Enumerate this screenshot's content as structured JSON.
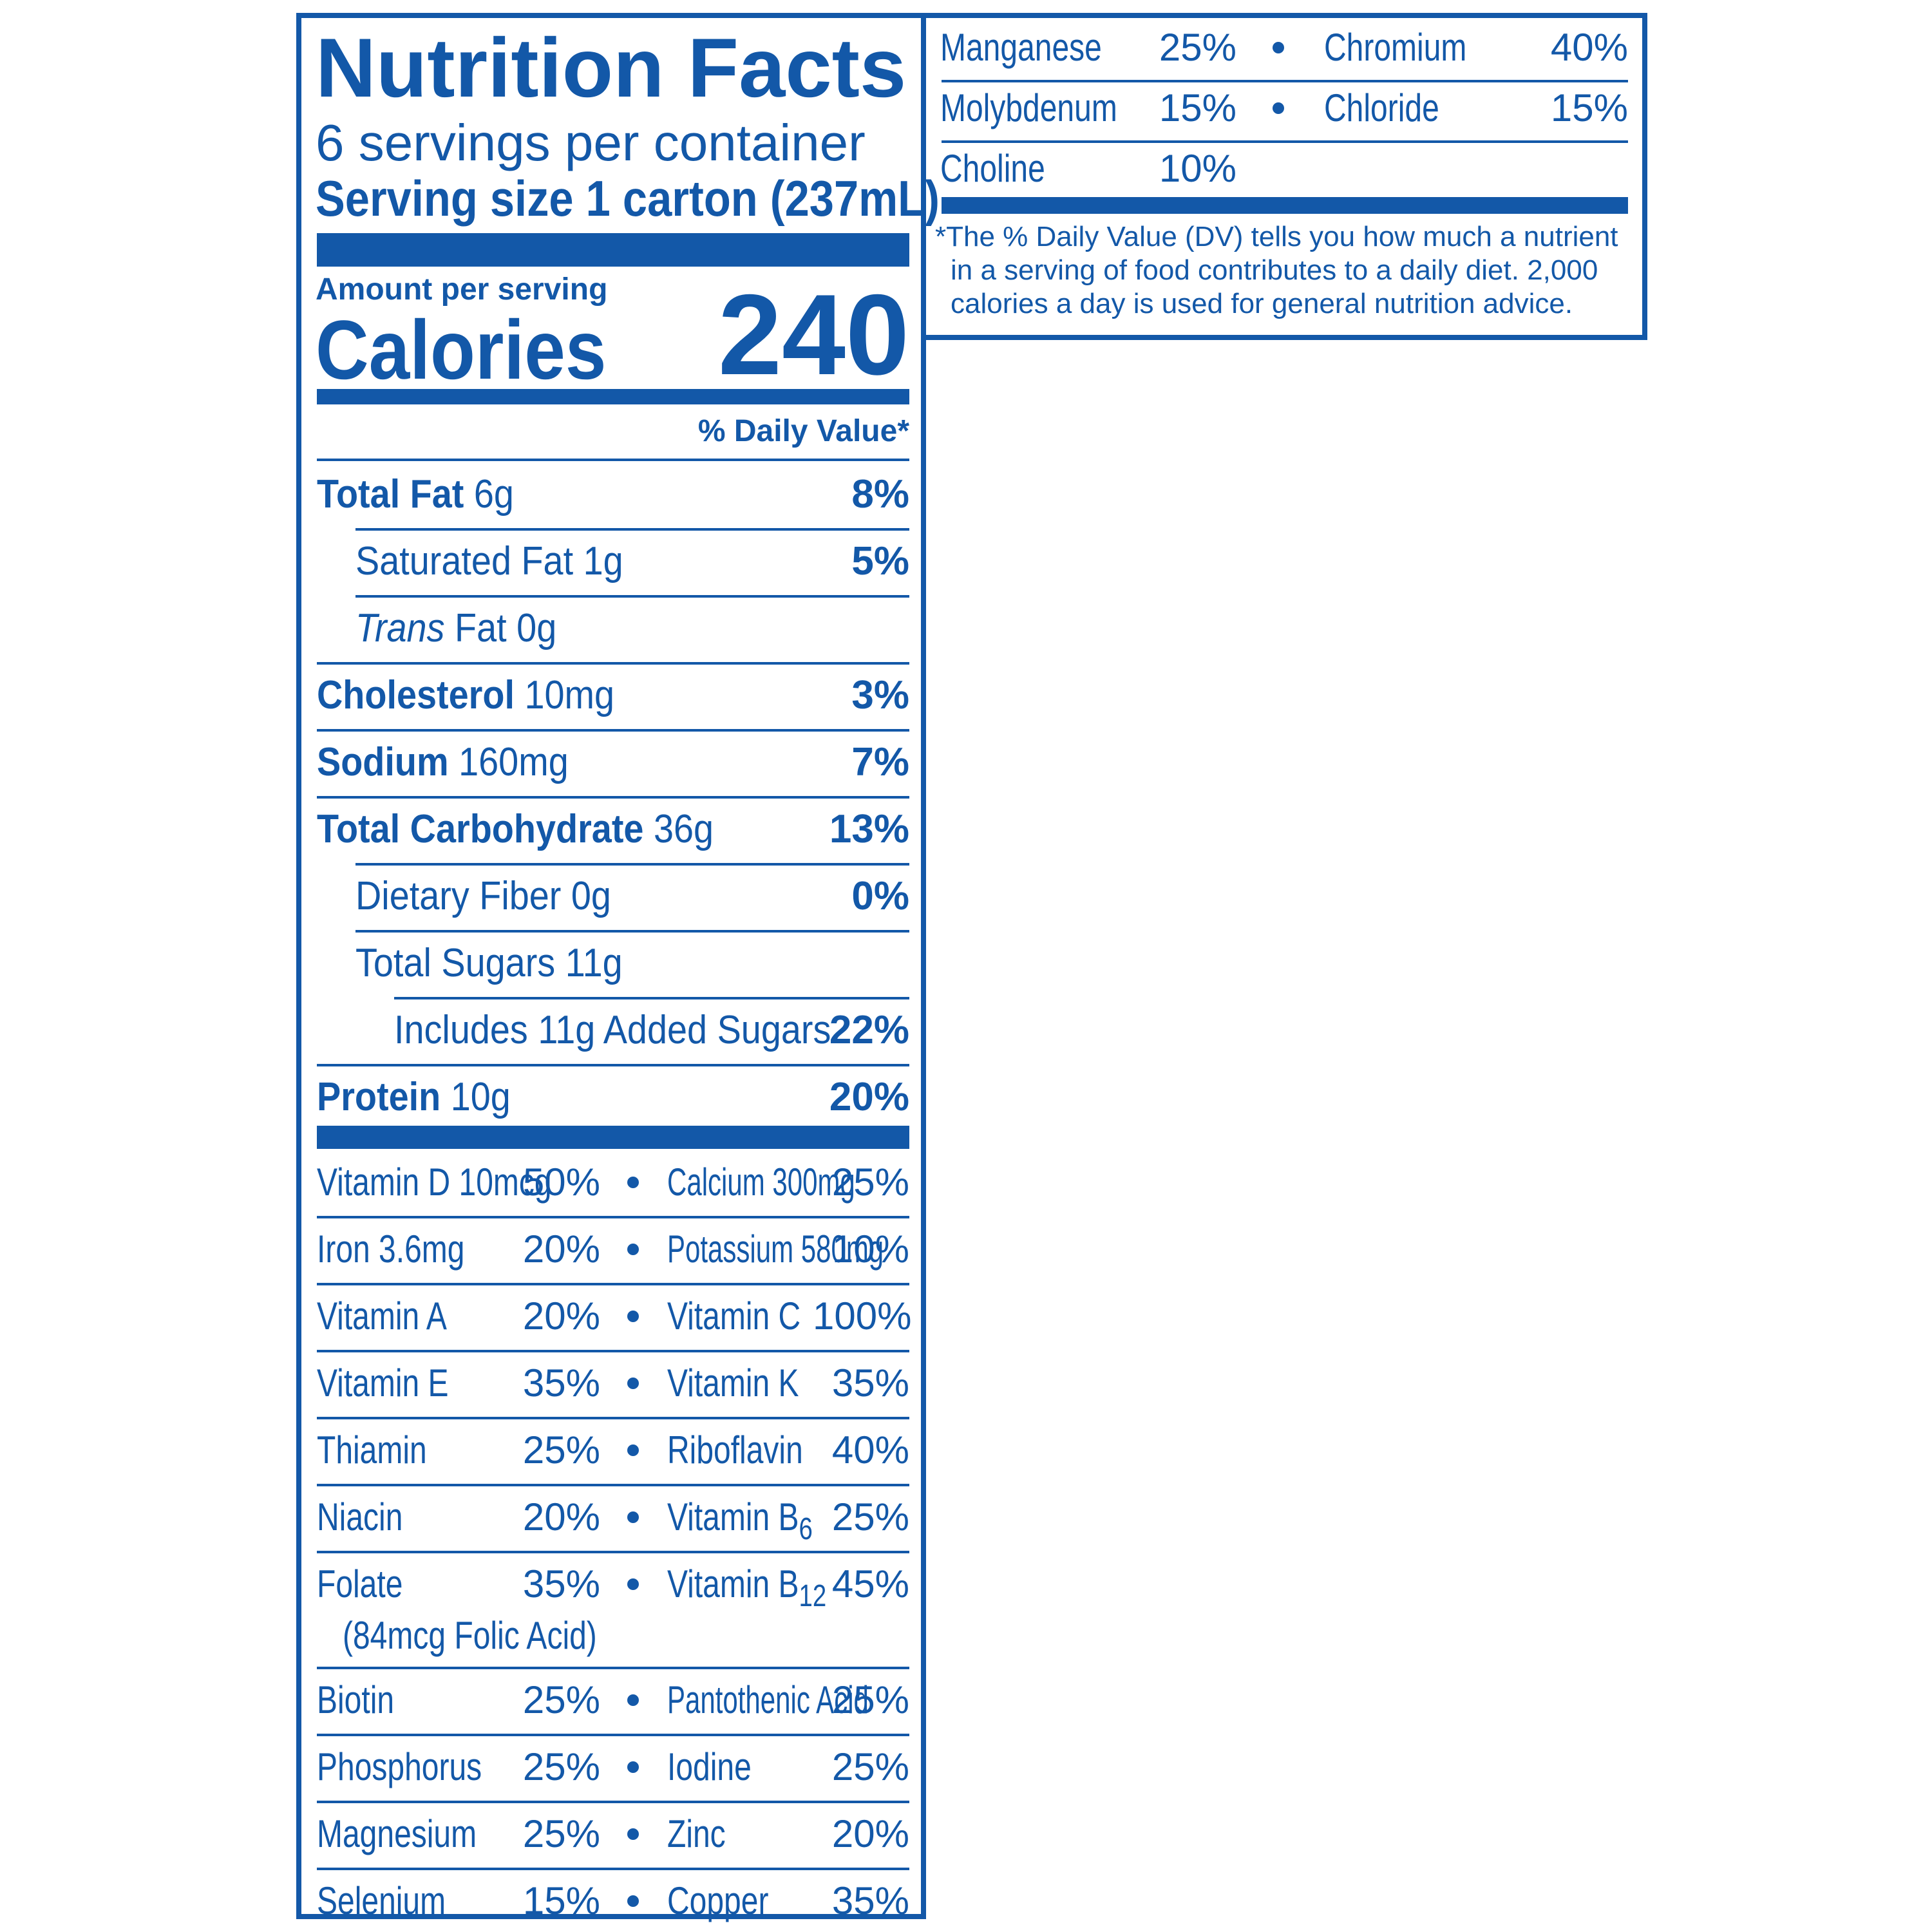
{
  "header": {
    "title": "Nutrition Facts",
    "servings_per_container": "6 servings per container",
    "serving_size_label": "Serving size",
    "serving_size_value": "1 carton (237mL)"
  },
  "calories": {
    "amount_label": "Amount per serving",
    "label": "Calories",
    "value": "240"
  },
  "dv_header": "% Daily Value*",
  "nutrients": [
    {
      "name": "Total Fat",
      "amount": "6g",
      "dv": "8%"
    },
    {
      "name": "Saturated Fat",
      "amount": "1g",
      "dv": "5%"
    },
    {
      "name_italic": "Trans",
      "name": "Fat",
      "amount": "0g",
      "dv": ""
    },
    {
      "name": "Cholesterol",
      "amount": "10mg",
      "dv": "3%"
    },
    {
      "name": "Sodium",
      "amount": "160mg",
      "dv": "7%"
    },
    {
      "name": "Total Carbohydrate",
      "amount": "36g",
      "dv": "13%"
    },
    {
      "name": "Dietary Fiber",
      "amount": "0g",
      "dv": "0%"
    },
    {
      "name": "Total Sugars",
      "amount": "11g",
      "dv": ""
    },
    {
      "name": "Includes 11g Added Sugars",
      "amount": "",
      "dv": "22%"
    },
    {
      "name": "Protein",
      "amount": "10g",
      "dv": "20%"
    }
  ],
  "vitamins": [
    {
      "l_name": "Vitamin D 10mcg",
      "l_dv": "50%",
      "r_name": "Calcium 300mg",
      "r_dv": "25%"
    },
    {
      "l_name": "Iron 3.6mg",
      "l_dv": "20%",
      "r_name": "Potassium 580mg",
      "r_dv": "10%"
    },
    {
      "l_name": "Vitamin A",
      "l_dv": "20%",
      "r_name": "Vitamin C",
      "r_dv": "100%"
    },
    {
      "l_name": "Vitamin E",
      "l_dv": "35%",
      "r_name": "Vitamin K",
      "r_dv": "35%"
    },
    {
      "l_name": "Thiamin",
      "l_dv": "25%",
      "r_name": "Riboflavin",
      "r_dv": "40%"
    },
    {
      "l_name": "Niacin",
      "l_dv": "20%",
      "r_name": "Vitamin B",
      "r_sub": "6",
      "r_dv": "25%"
    },
    {
      "l_name": "Folate",
      "l_sub_line": "(84mcg Folic Acid)",
      "l_dv": "35%",
      "r_name": "Vitamin B",
      "r_sub": "12",
      "r_dv": "45%"
    },
    {
      "l_name": "Biotin",
      "l_dv": "25%",
      "r_name": "Pantothenic Acid",
      "r_dv": "25%"
    },
    {
      "l_name": "Phosphorus",
      "l_dv": "25%",
      "r_name": "Iodine",
      "r_dv": "25%"
    },
    {
      "l_name": "Magnesium",
      "l_dv": "25%",
      "r_name": "Zinc",
      "r_dv": "20%"
    },
    {
      "l_name": "Selenium",
      "l_dv": "15%",
      "r_name": "Copper",
      "r_dv": "35%"
    }
  ],
  "minerals_cont": [
    {
      "l_name": "Manganese",
      "l_dv": "25%",
      "r_name": "Chromium",
      "r_dv": "40%"
    },
    {
      "l_name": "Molybdenum",
      "l_dv": "15%",
      "r_name": "Chloride",
      "r_dv": "15%"
    },
    {
      "l_name": "Choline",
      "l_dv": "10%",
      "r_name": "",
      "r_dv": ""
    }
  ],
  "footnote": {
    "star": "*",
    "line1": "The % Daily Value (DV) tells you how much a nutrient",
    "line2": "in a serving of food contributes to a daily diet. 2,000",
    "line3": "calories a day is used for general nutrition advice."
  },
  "colors": {
    "ink": "#1358a8",
    "background": "#ffffff"
  }
}
